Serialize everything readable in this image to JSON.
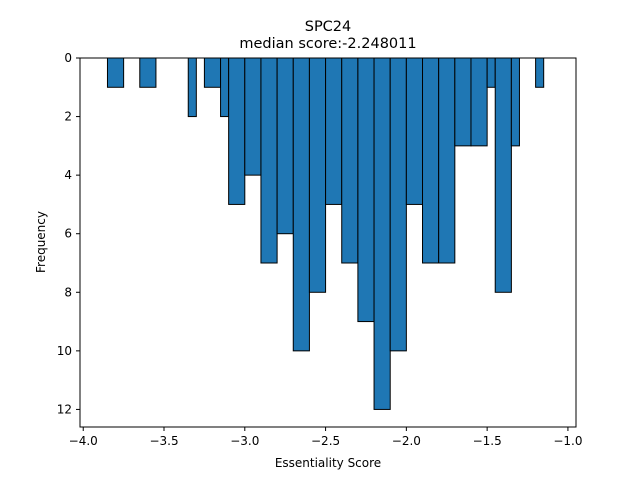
{
  "chart_data": {
    "type": "bar",
    "title": "SPC24",
    "subtitle": "median score:-2.248011",
    "xlabel": "Essentiality Score",
    "ylabel": "Frequency",
    "xlim": [
      -4.02,
      -0.95
    ],
    "ylim": [
      12.6,
      0
    ],
    "y_inverted": true,
    "x_ticks": [
      -4.0,
      -3.5,
      -3.0,
      -2.5,
      -2.0,
      -1.5,
      -1.0
    ],
    "x_tick_labels": [
      "−4.0",
      "−3.5",
      "−3.0",
      "−2.5",
      "−2.0",
      "−1.5",
      "−1.0"
    ],
    "y_ticks": [
      0,
      2,
      4,
      6,
      8,
      10,
      12
    ],
    "y_tick_labels": [
      "0",
      "2",
      "4",
      "6",
      "8",
      "10",
      "12"
    ],
    "bar_color": "#1f77b4",
    "edge_color": "#000000",
    "grid": false,
    "bins": [
      {
        "left": -3.85,
        "right": -3.75,
        "count": 1
      },
      {
        "left": -3.75,
        "right": -3.65,
        "count": 0
      },
      {
        "left": -3.65,
        "right": -3.55,
        "count": 1
      },
      {
        "left": -3.55,
        "right": -3.45,
        "count": 0
      },
      {
        "left": -3.45,
        "right": -3.35,
        "count": 0
      },
      {
        "left": -3.35,
        "right": -3.3,
        "count": 2
      },
      {
        "left": -3.25,
        "right": -3.15,
        "count": 1
      },
      {
        "left": -3.15,
        "right": -3.1,
        "count": 2
      },
      {
        "left": -3.1,
        "right": -3.0,
        "count": 5
      },
      {
        "left": -3.0,
        "right": -2.9,
        "count": 4
      },
      {
        "left": -2.9,
        "right": -2.8,
        "count": 7
      },
      {
        "left": -2.8,
        "right": -2.7,
        "count": 6
      },
      {
        "left": -2.7,
        "right": -2.6,
        "count": 10
      },
      {
        "left": -2.6,
        "right": -2.5,
        "count": 8
      },
      {
        "left": -2.5,
        "right": -2.4,
        "count": 5
      },
      {
        "left": -2.4,
        "right": -2.3,
        "count": 7
      },
      {
        "left": -2.3,
        "right": -2.2,
        "count": 9
      },
      {
        "left": -2.2,
        "right": -2.1,
        "count": 12
      },
      {
        "left": -2.1,
        "right": -2.0,
        "count": 10
      },
      {
        "left": -2.0,
        "right": -1.9,
        "count": 5
      },
      {
        "left": -1.9,
        "right": -1.8,
        "count": 7
      },
      {
        "left": -1.8,
        "right": -1.7,
        "count": 7
      },
      {
        "left": -1.7,
        "right": -1.6,
        "count": 3
      },
      {
        "left": -1.6,
        "right": -1.5,
        "count": 3
      },
      {
        "left": -1.5,
        "right": -1.45,
        "count": 1
      },
      {
        "left": -1.45,
        "right": -1.35,
        "count": 8
      },
      {
        "left": -1.35,
        "right": -1.3,
        "count": 3
      },
      {
        "left": -1.3,
        "right": -1.2,
        "count": 0
      },
      {
        "left": -1.2,
        "right": -1.15,
        "count": 1
      }
    ]
  }
}
